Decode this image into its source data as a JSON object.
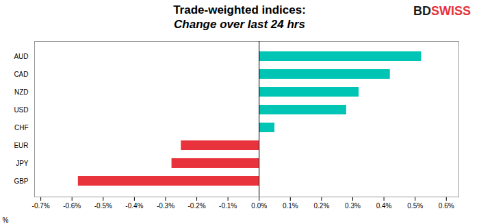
{
  "chart_data": {
    "type": "bar",
    "orientation": "horizontal",
    "title": "Trade-weighted indices:",
    "subtitle": "Change over last 24 hrs",
    "xlabel": "%",
    "categories": [
      "AUD",
      "CAD",
      "NZD",
      "USD",
      "CHF",
      "EUR",
      "JPY",
      "GBP"
    ],
    "values": [
      0.52,
      0.42,
      0.32,
      0.28,
      0.05,
      -0.25,
      -0.28,
      -0.58
    ],
    "colors": [
      "#00C4B4",
      "#00C4B4",
      "#00C4B4",
      "#00C4B4",
      "#00C4B4",
      "#E8333C",
      "#E8333C",
      "#E8333C"
    ],
    "xlim": [
      -0.72,
      0.64
    ],
    "xticks": [
      {
        "value": -0.7,
        "label": "-0.7%"
      },
      {
        "value": -0.6,
        "label": "-0.6%"
      },
      {
        "value": -0.5,
        "label": "-0.5%"
      },
      {
        "value": -0.4,
        "label": "-0.4%"
      },
      {
        "value": -0.3,
        "label": "-0.3%"
      },
      {
        "value": -0.2,
        "label": "-0.2%"
      },
      {
        "value": -0.1,
        "label": "-0.1%"
      },
      {
        "value": 0.0,
        "label": "0.0%"
      },
      {
        "value": 0.1,
        "label": "0.1%"
      },
      {
        "value": 0.2,
        "label": "0.2%"
      },
      {
        "value": 0.3,
        "label": "0.3%"
      },
      {
        "value": 0.4,
        "label": "0.4%"
      },
      {
        "value": 0.5,
        "label": "0.5%"
      },
      {
        "value": 0.6,
        "label": "0.6%"
      }
    ],
    "grid": false,
    "annotations": [
      {
        "text": "BD",
        "color": "#1a1a1a"
      },
      {
        "text": "SWISS",
        "color": "#E8333C"
      }
    ]
  }
}
